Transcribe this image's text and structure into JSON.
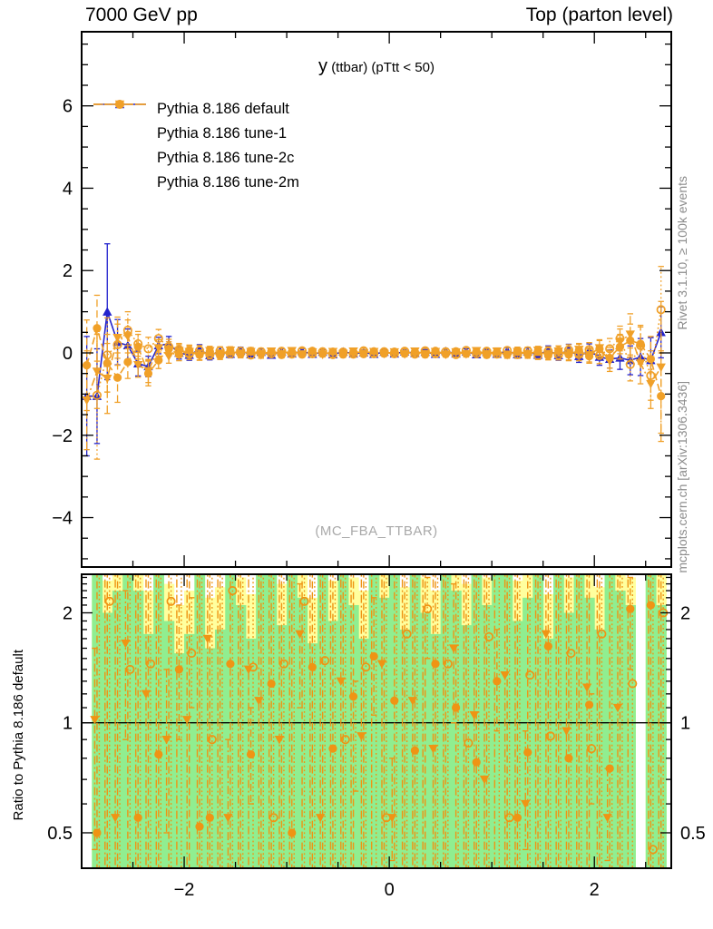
{
  "header": {
    "left": "7000 GeV pp",
    "right": "Top (parton level)"
  },
  "side_labels": {
    "top": "Rivet 3.1.10, ≥ 100k events",
    "bottom": "mcplots.cern.ch [arXiv:1306.3436]"
  },
  "watermark": "(MC_FBA_TTBAR)",
  "colors": {
    "blue": "#2323cd",
    "orange": "#f0a028",
    "ratio_orange": "#ef9414",
    "band_green": "#90ee90",
    "band_yellow": "#ffff9e",
    "gray_text": "#8c8c8c",
    "frame": "#000000"
  },
  "chart_data": [
    {
      "type": "line",
      "title": "y (ttbar) (pTtt < 50)",
      "title_parts": {
        "symbol": "y",
        "rest": "(ttbar) (pTtt < 50)"
      },
      "xlabel": "",
      "ylabel": "",
      "xlim": [
        -3.0,
        2.75
      ],
      "ylim": [
        -5.2,
        7.8
      ],
      "yticks": [
        -4,
        -2,
        0,
        2,
        4,
        6
      ],
      "xticks": [
        -2,
        0,
        2
      ],
      "minor_step_x": 0.5,
      "minor_step_y": 0.5,
      "legend_position": "top-left",
      "grid": false,
      "x": [
        -2.95,
        -2.85,
        -2.75,
        -2.65,
        -2.55,
        -2.45,
        -2.35,
        -2.25,
        -2.15,
        -2.05,
        -1.95,
        -1.85,
        -1.75,
        -1.65,
        -1.55,
        -1.45,
        -1.35,
        -1.25,
        -1.15,
        -1.05,
        -0.95,
        -0.85,
        -0.75,
        -0.65,
        -0.55,
        -0.45,
        -0.35,
        -0.25,
        -0.15,
        -0.05,
        0.05,
        0.15,
        0.25,
        0.35,
        0.45,
        0.55,
        0.65,
        0.75,
        0.85,
        0.95,
        1.05,
        1.15,
        1.25,
        1.35,
        1.45,
        1.55,
        1.65,
        1.75,
        1.85,
        1.95,
        2.05,
        2.15,
        2.25,
        2.35,
        2.45,
        2.55,
        2.65
      ],
      "series": [
        {
          "name": "Pythia 8.186 default",
          "color": "#2323cd",
          "marker": "triangle-up",
          "line": "solid",
          "y": [
            -1.05,
            -1.05,
            1.0,
            0.26,
            0.18,
            -0.26,
            -0.33,
            0.18,
            0.22,
            0.0,
            -0.05,
            0.08,
            -0.06,
            0.04,
            -0.03,
            0.05,
            -0.04,
            0.02,
            -0.05,
            0.03,
            -0.02,
            0.04,
            -0.03,
            0.02,
            -0.04,
            0.03,
            -0.02,
            0.01,
            -0.03,
            0.02,
            -0.02,
            0.03,
            -0.01,
            0.02,
            -0.03,
            0.04,
            -0.02,
            0.03,
            -0.04,
            0.02,
            -0.03,
            0.05,
            -0.04,
            0.03,
            -0.05,
            0.06,
            -0.06,
            0.08,
            -0.08,
            0.05,
            -0.1,
            -0.15,
            -0.12,
            -0.18,
            -0.1,
            -0.18,
            0.5
          ],
          "err": [
            1.45,
            1.15,
            1.65,
            0.55,
            0.4,
            0.3,
            0.25,
            0.2,
            0.18,
            0.15,
            0.13,
            0.12,
            0.11,
            0.1,
            0.09,
            0.09,
            0.08,
            0.08,
            0.07,
            0.07,
            0.07,
            0.06,
            0.06,
            0.06,
            0.06,
            0.06,
            0.06,
            0.06,
            0.06,
            0.06,
            0.06,
            0.06,
            0.06,
            0.06,
            0.06,
            0.06,
            0.06,
            0.07,
            0.07,
            0.07,
            0.08,
            0.08,
            0.09,
            0.09,
            0.1,
            0.11,
            0.12,
            0.13,
            0.15,
            0.17,
            0.2,
            0.22,
            0.28,
            0.35,
            0.45,
            0.55,
            0.62
          ]
        },
        {
          "name": "Pythia 8.186 tune-1",
          "color": "#f0a028",
          "marker": "triangle-down",
          "line": "dashdot",
          "y": [
            -1.15,
            -0.45,
            -0.62,
            0.37,
            0.4,
            -0.29,
            -0.44,
            0.12,
            -0.08,
            0.05,
            0.03,
            -0.06,
            0.05,
            -0.03,
            0.06,
            -0.02,
            0.03,
            -0.05,
            0.04,
            -0.02,
            0.05,
            -0.03,
            0.02,
            -0.04,
            0.03,
            -0.02,
            0.04,
            -0.01,
            0.03,
            -0.02,
            0.02,
            -0.03,
            0.04,
            -0.02,
            0.03,
            -0.04,
            0.02,
            -0.03,
            0.05,
            -0.02,
            0.04,
            -0.05,
            0.03,
            -0.04,
            0.06,
            -0.05,
            0.04,
            -0.06,
            0.08,
            -0.05,
            0.12,
            -0.2,
            0.28,
            0.45,
            -0.25,
            -0.75,
            -0.35
          ],
          "err": [
            1.2,
            0.9,
            0.85,
            0.5,
            0.4,
            0.3,
            0.28,
            0.2,
            0.17,
            0.15,
            0.13,
            0.12,
            0.11,
            0.1,
            0.09,
            0.09,
            0.08,
            0.08,
            0.07,
            0.07,
            0.07,
            0.06,
            0.06,
            0.06,
            0.06,
            0.06,
            0.06,
            0.06,
            0.06,
            0.06,
            0.06,
            0.06,
            0.06,
            0.06,
            0.06,
            0.06,
            0.06,
            0.07,
            0.07,
            0.07,
            0.08,
            0.08,
            0.09,
            0.09,
            0.1,
            0.11,
            0.12,
            0.13,
            0.15,
            0.17,
            0.2,
            0.25,
            0.3,
            0.5,
            0.5,
            0.6,
            1.6
          ]
        },
        {
          "name": "Pythia 8.186 tune-2c",
          "color": "#f0a028",
          "marker": "circle",
          "line": "dashed",
          "y": [
            -0.3,
            0.6,
            -0.25,
            -0.6,
            -0.22,
            0.15,
            -0.5,
            -0.18,
            0.1,
            -0.04,
            0.06,
            -0.05,
            0.03,
            -0.06,
            0.04,
            -0.03,
            0.05,
            -0.02,
            0.03,
            -0.05,
            0.02,
            -0.04,
            0.05,
            -0.02,
            0.03,
            -0.04,
            0.02,
            -0.03,
            0.04,
            -0.02,
            0.03,
            -0.02,
            0.02,
            -0.04,
            0.05,
            -0.03,
            0.04,
            -0.02,
            0.03,
            -0.05,
            0.02,
            -0.04,
            0.05,
            -0.03,
            0.04,
            -0.06,
            0.05,
            -0.04,
            0.06,
            -0.08,
            0.1,
            -0.12,
            0.15,
            0.3,
            0.22,
            -0.15,
            -1.05
          ],
          "err": [
            1.1,
            0.8,
            0.7,
            0.6,
            0.4,
            0.3,
            0.3,
            0.2,
            0.17,
            0.15,
            0.13,
            0.12,
            0.11,
            0.1,
            0.09,
            0.09,
            0.08,
            0.08,
            0.07,
            0.07,
            0.07,
            0.06,
            0.06,
            0.06,
            0.06,
            0.06,
            0.06,
            0.06,
            0.06,
            0.06,
            0.06,
            0.06,
            0.06,
            0.06,
            0.06,
            0.06,
            0.06,
            0.07,
            0.07,
            0.07,
            0.08,
            0.08,
            0.09,
            0.09,
            0.1,
            0.11,
            0.12,
            0.13,
            0.15,
            0.17,
            0.2,
            0.25,
            0.3,
            0.4,
            0.45,
            0.55,
            1.1
          ]
        },
        {
          "name": "Pythia 8.186 tune-2m",
          "color": "#f0a028",
          "marker": "circle-open",
          "line": "dotted",
          "y": [
            null,
            -1.03,
            -0.05,
            0.2,
            0.55,
            0.22,
            0.1,
            0.35,
            0.15,
            0.08,
            -0.03,
            0.06,
            -0.04,
            0.05,
            -0.02,
            0.04,
            -0.05,
            0.03,
            -0.02,
            0.04,
            -0.03,
            0.05,
            -0.02,
            0.03,
            -0.04,
            0.02,
            -0.03,
            0.05,
            -0.02,
            0.03,
            -0.02,
            0.04,
            -0.03,
            0.05,
            -0.02,
            0.03,
            -0.04,
            0.06,
            -0.02,
            0.04,
            -0.03,
            0.06,
            -0.04,
            0.05,
            -0.06,
            0.04,
            -0.05,
            0.07,
            -0.04,
            0.08,
            -0.06,
            0.1,
            0.35,
            -0.28,
            0.18,
            -0.55,
            1.05
          ],
          "err": [
            null,
            1.55,
            0.9,
            0.5,
            0.45,
            0.3,
            0.28,
            0.22,
            0.18,
            0.15,
            0.13,
            0.12,
            0.11,
            0.1,
            0.09,
            0.09,
            0.08,
            0.08,
            0.07,
            0.07,
            0.07,
            0.06,
            0.06,
            0.06,
            0.06,
            0.06,
            0.06,
            0.06,
            0.06,
            0.06,
            0.06,
            0.06,
            0.06,
            0.06,
            0.06,
            0.06,
            0.06,
            0.07,
            0.07,
            0.07,
            0.08,
            0.08,
            0.09,
            0.09,
            0.1,
            0.11,
            0.12,
            0.13,
            0.15,
            0.17,
            0.2,
            0.25,
            0.3,
            0.4,
            0.45,
            0.6,
            1.05
          ]
        }
      ]
    },
    {
      "type": "ratio",
      "ylabel": "Ratio to Pythia 8.186 default",
      "yscale": "log",
      "ylim": [
        0.4,
        2.55
      ],
      "yticks": [
        0.5,
        1,
        2
      ],
      "xticks": [
        -2,
        0,
        2
      ],
      "reference_line": 1,
      "bands": {
        "yellow_top": [
          null,
          2.55,
          2.45,
          2.55,
          2.55,
          2.55,
          2.3,
          2.55,
          2.4,
          2.1,
          2.3,
          2.55,
          2.2,
          2.35,
          2.55,
          2.5,
          2.25,
          2.55,
          2.55,
          2.4,
          2.55,
          2.55,
          2.2,
          2.55,
          2.45,
          2.55,
          2.5,
          2.3,
          2.55,
          2.55,
          2.55,
          2.35,
          2.55,
          2.5,
          2.3,
          2.55,
          2.55,
          2.4,
          2.55,
          2.5,
          2.55,
          2.55,
          2.45,
          2.55,
          2.55,
          2.25,
          2.55,
          2.5,
          2.55,
          2.55,
          2.35,
          2.55,
          2.55,
          2.5,
          null,
          2.55,
          2.55
        ],
        "green_top": [
          null,
          2.55,
          2.0,
          2.3,
          2.55,
          2.3,
          1.75,
          2.55,
          1.9,
          1.55,
          1.75,
          2.55,
          1.6,
          1.8,
          2.55,
          2.1,
          1.7,
          2.55,
          2.55,
          1.85,
          2.55,
          2.2,
          1.65,
          2.55,
          1.9,
          2.55,
          2.1,
          1.7,
          2.55,
          2.2,
          2.55,
          1.8,
          2.55,
          2.0,
          1.75,
          2.55,
          2.3,
          1.85,
          2.55,
          2.1,
          2.55,
          2.55,
          1.9,
          2.2,
          2.55,
          1.7,
          2.55,
          2.0,
          2.55,
          2.2,
          1.8,
          2.55,
          2.3,
          2.1,
          null,
          2.55,
          2.1
        ]
      },
      "series": [
        {
          "name": "Pythia 8.186 tune-1",
          "color": "#ef9414",
          "marker": "triangle-down",
          "line": "dashdot",
          "r": [
            null,
            1.02,
            null,
            0.55,
            1.65,
            null,
            1.2,
            null,
            0.9,
            null,
            1.02,
            null,
            1.7,
            null,
            0.55,
            null,
            1.4,
            1.15,
            null,
            0.9,
            null,
            1.75,
            null,
            0.55,
            null,
            1.3,
            null,
            0.92,
            null,
            1.45,
            0.55,
            null,
            1.15,
            null,
            0.85,
            null,
            1.6,
            null,
            1.05,
            0.7,
            null,
            1.35,
            null,
            0.6,
            null,
            1.75,
            null,
            0.95,
            null,
            1.25,
            null,
            0.55,
            1.1,
            null,
            0.88,
            null,
            null
          ],
          "lo": {
            "1": 0.45,
            "4": 0.9,
            "8": 0.5,
            "14": 0.4,
            "21": 1.1,
            "30": 0.42,
            "36": 1.0,
            "43": 0.45,
            "51": 0.42
          },
          "hi": {
            "1": 1.6,
            "4": 2.3,
            "8": 1.4,
            "14": 0.9,
            "21": 2.4,
            "30": 0.8,
            "36": 2.4,
            "43": 0.95,
            "51": 0.75
          }
        },
        {
          "name": "Pythia 8.186 tune-2c",
          "color": "#ef9414",
          "marker": "circle",
          "line": "dashed",
          "r": [
            null,
            0.5,
            null,
            0.43,
            null,
            0.55,
            null,
            0.82,
            null,
            1.4,
            null,
            0.52,
            0.55,
            null,
            1.45,
            null,
            0.82,
            null,
            1.28,
            null,
            0.5,
            null,
            1.42,
            null,
            0.85,
            null,
            1.18,
            null,
            1.52,
            null,
            1.15,
            null,
            0.84,
            null,
            1.45,
            null,
            1.1,
            null,
            0.78,
            null,
            1.3,
            null,
            0.55,
            0.83,
            null,
            1.62,
            null,
            0.8,
            null,
            1.12,
            null,
            0.75,
            null,
            2.05,
            null,
            2.1,
            null
          ],
          "lo": {
            "9": 0.9,
            "16": 0.6,
            "28": 1.05,
            "40": 0.95,
            "53": 1.4
          },
          "hi": {
            "9": 2.1,
            "16": 1.1,
            "28": 2.2,
            "40": 1.8,
            "53": 2.5
          }
        },
        {
          "name": "Pythia 8.186 tune-2m",
          "color": "#ef9414",
          "marker": "circle-open",
          "line": "dotted",
          "r": [
            null,
            null,
            2.15,
            null,
            1.4,
            null,
            1.45,
            null,
            2.15,
            null,
            1.55,
            null,
            0.9,
            null,
            2.3,
            null,
            1.42,
            null,
            0.55,
            1.45,
            null,
            2.15,
            null,
            1.48,
            null,
            0.9,
            null,
            1.42,
            null,
            0.55,
            null,
            1.75,
            null,
            2.05,
            null,
            1.45,
            null,
            0.88,
            null,
            1.72,
            null,
            0.55,
            null,
            1.35,
            null,
            0.92,
            null,
            1.55,
            null,
            0.85,
            1.75,
            null,
            null,
            1.28,
            null,
            0.45,
            2.0
          ],
          "lo": {
            "10": 1.1,
            "26": 0.65,
            "33": 1.5,
            "49": 0.6
          },
          "hi": {
            "10": 2.2,
            "26": 1.3,
            "33": 2.5,
            "49": 1.2
          }
        }
      ]
    }
  ]
}
